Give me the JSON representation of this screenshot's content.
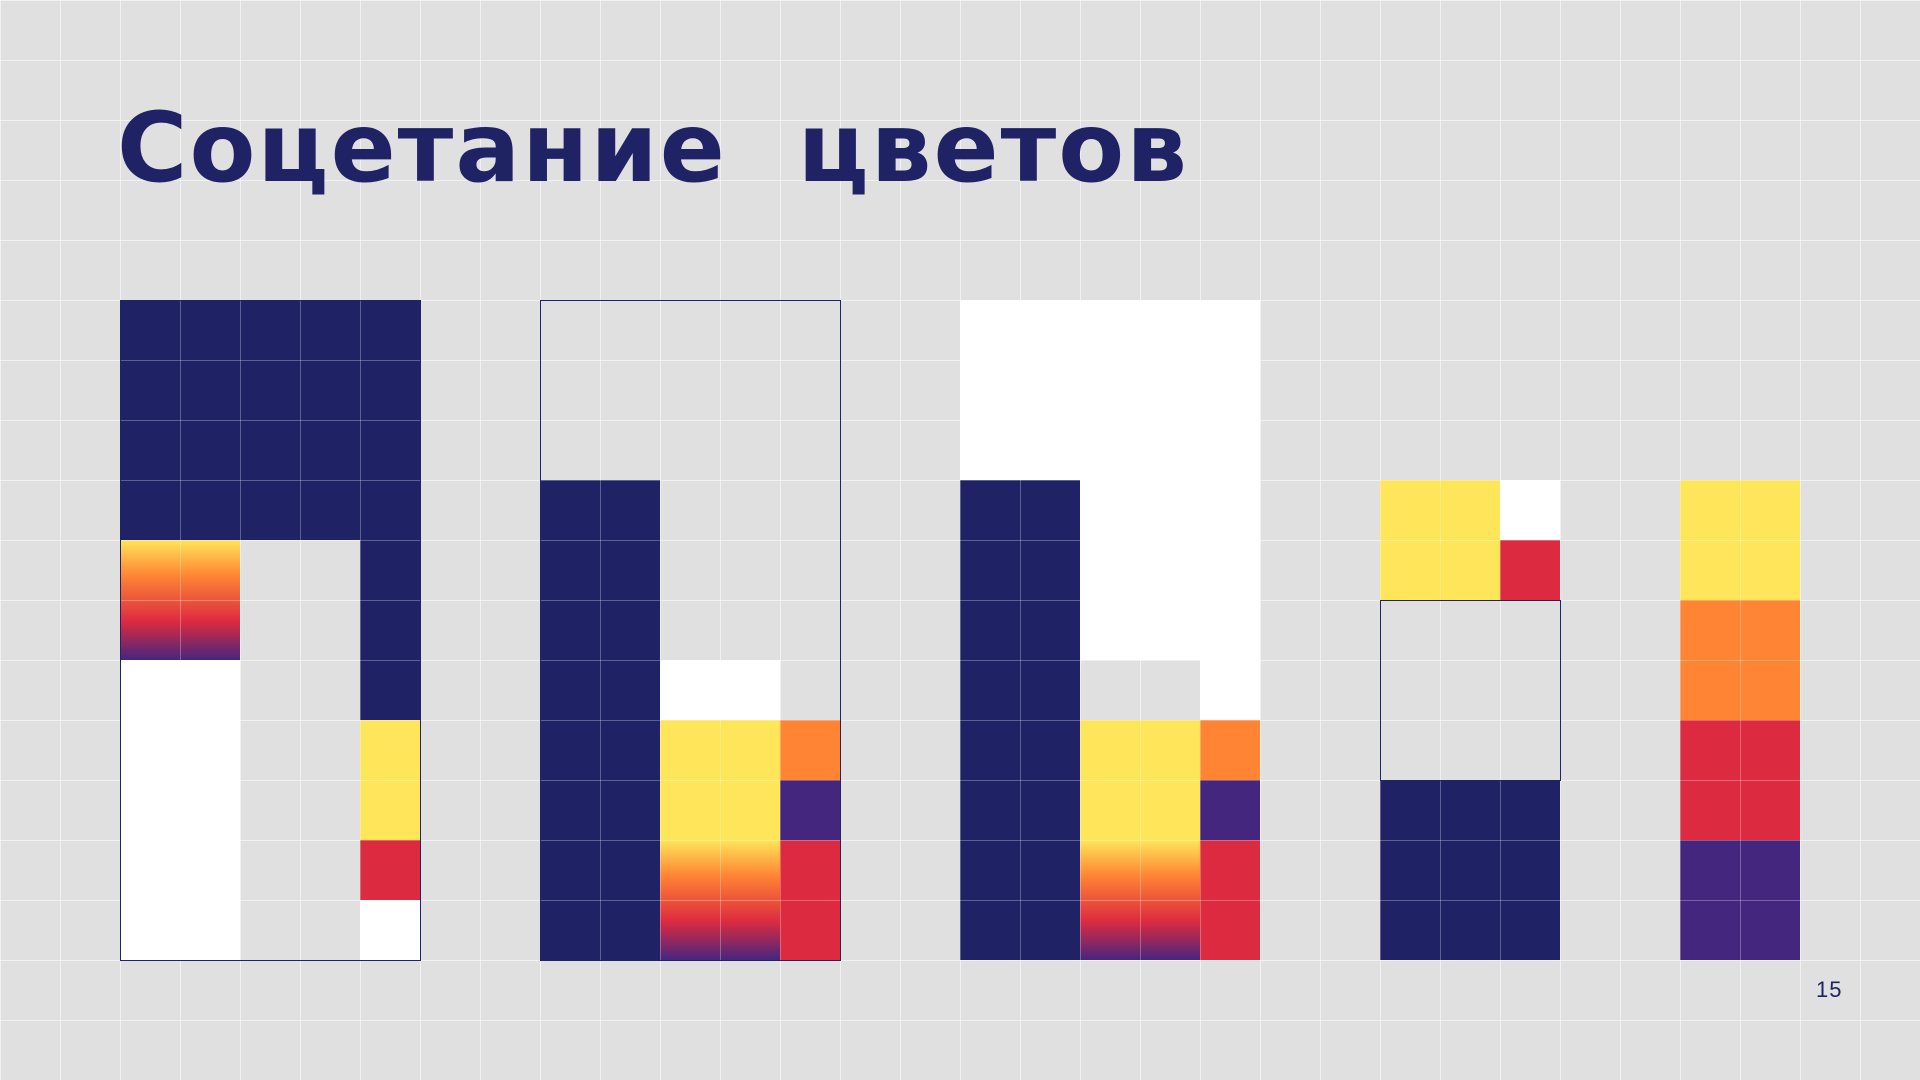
{
  "slide": {
    "title": "Соцетание  цветов",
    "page_number": "15"
  },
  "colors": {
    "navy": "#202266",
    "yellow": "#ffe55a",
    "orange": "#ff8433",
    "red": "#dc2a40",
    "purple": "#45267f",
    "white": "#ffffff",
    "light_gray": "#e0e0e0",
    "gradient_fire": [
      "#ffe55a",
      "#ff8433",
      "#dc2a40",
      "#45267f"
    ]
  },
  "compositions": [
    {
      "name": "composition-1",
      "blocks": [
        {
          "cells": [
            0,
            0,
            5,
            4
          ],
          "color": "navy"
        },
        {
          "cells": [
            4,
            4,
            1,
            3
          ],
          "color": "navy"
        },
        {
          "cells": [
            0,
            4,
            2,
            2
          ],
          "color": "gradient"
        },
        {
          "cells": [
            0,
            6,
            2,
            5
          ],
          "color": "white"
        },
        {
          "cells": [
            4,
            7,
            1,
            2
          ],
          "color": "yellow"
        },
        {
          "cells": [
            4,
            9,
            1,
            1
          ],
          "color": "red"
        },
        {
          "cells": [
            4,
            10,
            1,
            1
          ],
          "color": "white"
        }
      ],
      "frames": [
        [
          0,
          0,
          5,
          11
        ]
      ]
    },
    {
      "name": "composition-2",
      "blocks": [
        {
          "cells": [
            0,
            3,
            2,
            8
          ],
          "color": "navy"
        },
        {
          "cells": [
            2,
            6,
            2,
            1
          ],
          "color": "white"
        },
        {
          "cells": [
            2,
            7,
            2,
            2
          ],
          "color": "yellow"
        },
        {
          "cells": [
            2,
            9,
            2,
            2
          ],
          "color": "gradient"
        },
        {
          "cells": [
            4,
            7,
            1,
            1
          ],
          "color": "orange"
        },
        {
          "cells": [
            4,
            8,
            1,
            1
          ],
          "color": "purple"
        },
        {
          "cells": [
            4,
            9,
            1,
            2
          ],
          "color": "red"
        }
      ],
      "frames": [
        [
          0,
          0,
          5,
          11
        ]
      ]
    },
    {
      "name": "composition-3",
      "blocks": [
        {
          "cells": [
            0,
            0,
            5,
            3
          ],
          "color": "white"
        },
        {
          "cells": [
            2,
            3,
            3,
            3
          ],
          "color": "white"
        },
        {
          "cells": [
            4,
            6,
            1,
            1
          ],
          "color": "white"
        },
        {
          "cells": [
            0,
            3,
            2,
            8
          ],
          "color": "navy"
        },
        {
          "cells": [
            2,
            7,
            2,
            2
          ],
          "color": "yellow"
        },
        {
          "cells": [
            2,
            9,
            2,
            2
          ],
          "color": "gradient"
        },
        {
          "cells": [
            4,
            7,
            1,
            1
          ],
          "color": "orange"
        },
        {
          "cells": [
            4,
            8,
            1,
            1
          ],
          "color": "purple"
        },
        {
          "cells": [
            4,
            9,
            1,
            2
          ],
          "color": "red"
        }
      ],
      "frames": []
    },
    {
      "name": "composition-4",
      "blocks": [
        {
          "cells": [
            0,
            3,
            2,
            2
          ],
          "color": "yellow"
        },
        {
          "cells": [
            2,
            3,
            1,
            1
          ],
          "color": "white"
        },
        {
          "cells": [
            2,
            4,
            1,
            1
          ],
          "color": "red"
        },
        {
          "cells": [
            0,
            8,
            3,
            3
          ],
          "color": "navy"
        }
      ],
      "frames": [
        [
          0,
          5,
          3,
          3
        ]
      ]
    },
    {
      "name": "composition-5",
      "blocks": [
        {
          "cells": [
            0,
            3,
            2,
            2
          ],
          "color": "yellow"
        },
        {
          "cells": [
            0,
            5,
            2,
            2
          ],
          "color": "orange"
        },
        {
          "cells": [
            0,
            7,
            2,
            2
          ],
          "color": "red"
        },
        {
          "cells": [
            0,
            9,
            2,
            2
          ],
          "color": "purple"
        }
      ],
      "frames": []
    }
  ]
}
